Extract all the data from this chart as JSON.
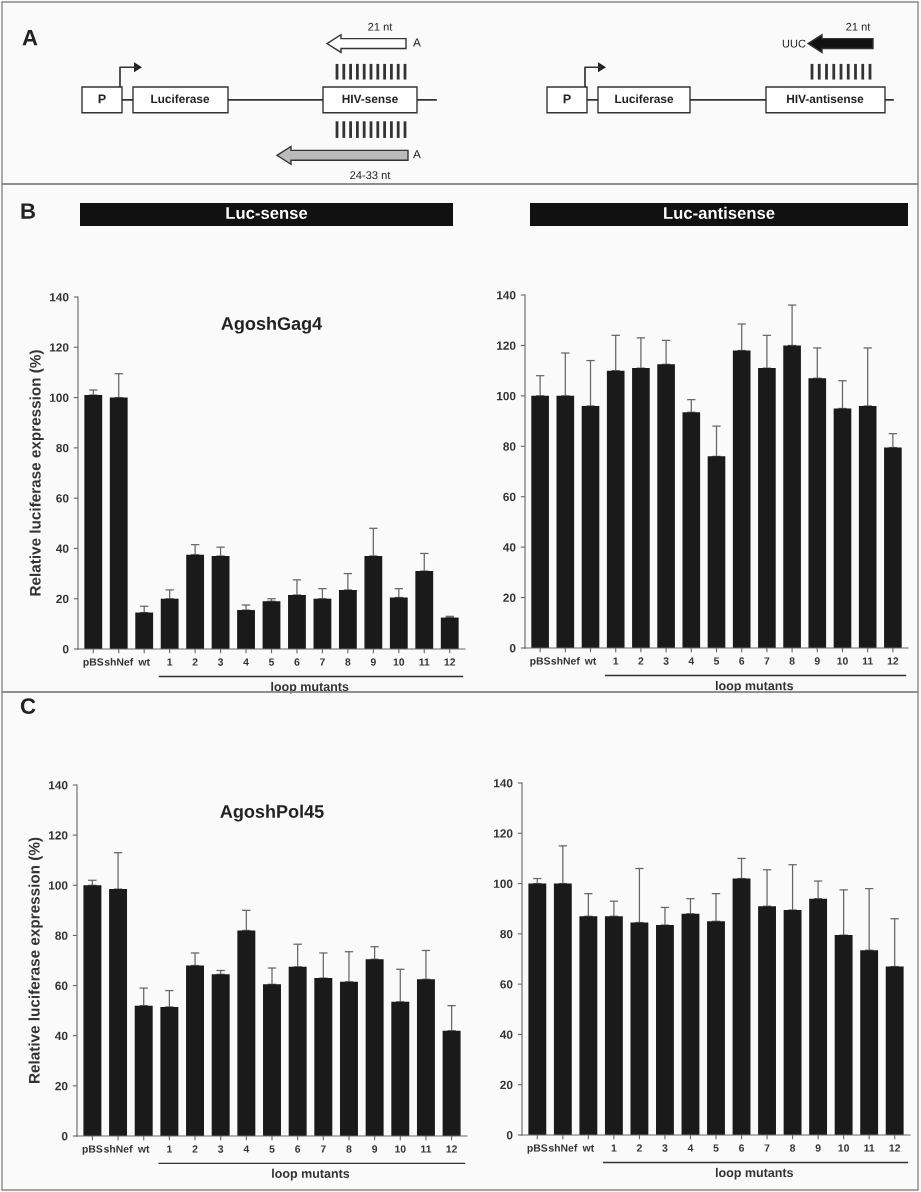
{
  "chart_data": [
    {
      "type": "other",
      "annotations": [
        "A",
        "P",
        "Luciferase",
        "HIV-sense",
        "21 nt",
        "A",
        "24-33 nt",
        "A",
        "P",
        "Luciferase",
        "HIV-antisense",
        "UUC",
        "21 nt"
      ]
    },
    {
      "type": "bar",
      "title": "Luc-sense",
      "ylabel": "Relative luciferase expression (%)",
      "annotations": [
        "B",
        "AgoshGag4",
        "loop mutants"
      ],
      "categories": [
        "pBS",
        "shNef",
        "wt",
        "1",
        "2",
        "3",
        "4",
        "5",
        "6",
        "7",
        "8",
        "9",
        "10",
        "11",
        "12"
      ],
      "color": "#1a1a1a",
      "ylim": [
        0,
        140
      ],
      "yticks": [
        0,
        20,
        40,
        60,
        80,
        100,
        120,
        140
      ],
      "values": [
        101,
        100,
        14.5,
        20,
        37.5,
        37,
        15.5,
        19,
        21.5,
        20,
        23.5,
        37,
        20.5,
        31,
        12.5
      ],
      "errors": [
        [
          101,
          103
        ],
        [
          100,
          109.5
        ],
        [
          14.5,
          17
        ],
        [
          20,
          23.5
        ],
        [
          37.5,
          41.5
        ],
        [
          37,
          40.5
        ],
        [
          15.5,
          17.5
        ],
        [
          19,
          20
        ],
        [
          21.5,
          27.5
        ],
        [
          20,
          24
        ],
        [
          23.5,
          30
        ],
        [
          37,
          48
        ],
        [
          20.5,
          24
        ],
        [
          31,
          38
        ],
        [
          12.5,
          13
        ]
      ]
    },
    {
      "type": "bar",
      "title": "Luc-antisense",
      "annotations": [
        "loop mutants"
      ],
      "categories": [
        "pBS",
        "shNef",
        "wt",
        "1",
        "2",
        "3",
        "4",
        "5",
        "6",
        "7",
        "8",
        "9",
        "10",
        "11",
        "12"
      ],
      "color": "#1a1a1a",
      "ylim": [
        0,
        140
      ],
      "yticks": [
        0,
        20,
        40,
        60,
        80,
        100,
        120,
        140
      ],
      "values": [
        100,
        100,
        96,
        110,
        111,
        112.5,
        93.5,
        76,
        118,
        111,
        120,
        107,
        95,
        96,
        79.5
      ],
      "errors": [
        [
          100,
          108
        ],
        [
          100,
          117
        ],
        [
          96,
          114
        ],
        [
          110,
          124
        ],
        [
          111,
          123
        ],
        [
          112.5,
          122
        ],
        [
          93.5,
          98.5
        ],
        [
          76,
          88
        ],
        [
          118,
          128.5
        ],
        [
          111,
          124
        ],
        [
          120,
          136
        ],
        [
          107,
          119
        ],
        [
          95,
          106
        ],
        [
          96,
          119
        ],
        [
          79.5,
          85
        ]
      ]
    },
    {
      "type": "bar",
      "ylabel": "Relative luciferase expression (%)",
      "annotations": [
        "C",
        "AgoshPol45",
        "loop mutants"
      ],
      "categories": [
        "pBS",
        "shNef",
        "wt",
        "1",
        "2",
        "3",
        "4",
        "5",
        "6",
        "7",
        "8",
        "9",
        "10",
        "11",
        "12"
      ],
      "color": "#1a1a1a",
      "ylim": [
        0,
        140
      ],
      "yticks": [
        0,
        20,
        40,
        60,
        80,
        100,
        120,
        140
      ],
      "values": [
        100,
        98.5,
        52,
        51.5,
        68,
        64.5,
        82,
        60.5,
        67.5,
        63,
        61.5,
        70.5,
        53.5,
        62.5,
        42
      ],
      "errors": [
        [
          100,
          102
        ],
        [
          98.5,
          113
        ],
        [
          52,
          59
        ],
        [
          51.5,
          58
        ],
        [
          68,
          73
        ],
        [
          64.5,
          66
        ],
        [
          82,
          90
        ],
        [
          60.5,
          67
        ],
        [
          67.5,
          76.5
        ],
        [
          63,
          73
        ],
        [
          61.5,
          73.5
        ],
        [
          70.5,
          75.5
        ],
        [
          53.5,
          66.5
        ],
        [
          62.5,
          74
        ],
        [
          42,
          52
        ]
      ]
    },
    {
      "type": "bar",
      "annotations": [
        "loop mutants"
      ],
      "categories": [
        "pBS",
        "shNef",
        "wt",
        "1",
        "2",
        "3",
        "4",
        "5",
        "6",
        "7",
        "8",
        "9",
        "10",
        "11",
        "12"
      ],
      "color": "#1a1a1a",
      "ylim": [
        0,
        140
      ],
      "yticks": [
        0,
        20,
        40,
        60,
        80,
        100,
        120,
        140
      ],
      "values": [
        100,
        100,
        87,
        87,
        84.5,
        83.5,
        88,
        85,
        102,
        91,
        89.5,
        94,
        79.5,
        73.5,
        67
      ],
      "errors": [
        [
          100,
          102
        ],
        [
          100,
          115
        ],
        [
          87,
          96
        ],
        [
          87,
          93
        ],
        [
          84.5,
          106
        ],
        [
          83.5,
          90.5
        ],
        [
          88,
          94
        ],
        [
          85,
          96
        ],
        [
          102,
          110
        ],
        [
          91,
          105.5
        ],
        [
          89.5,
          107.5
        ],
        [
          94,
          101
        ],
        [
          79.5,
          97.5
        ],
        [
          73.5,
          98
        ],
        [
          67,
          86
        ]
      ]
    }
  ]
}
